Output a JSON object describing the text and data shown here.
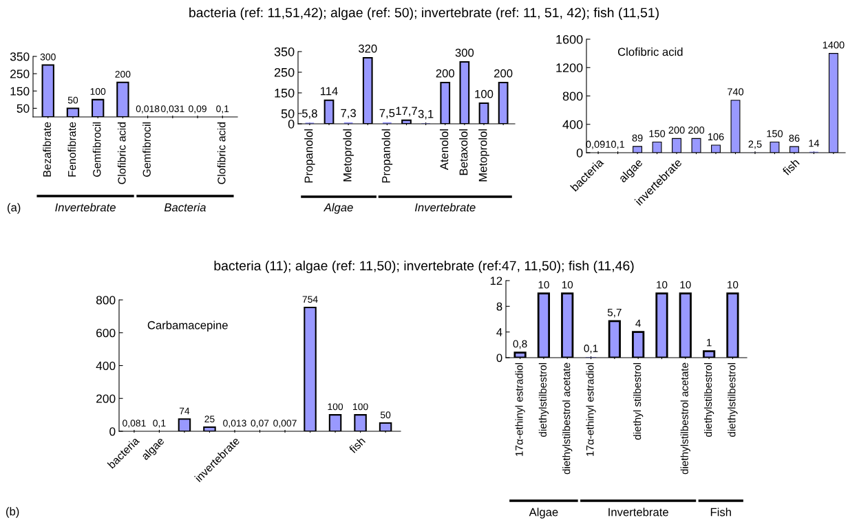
{
  "chart_data": [
    {
      "type": "bar",
      "categories": [
        "Bezafibrate",
        "Fenofibrate",
        "Gemfibrocil",
        "Clofibric acid",
        "Gemfibrocil",
        null,
        null,
        "Clofibric acid"
      ],
      "values": [
        300,
        50,
        100,
        200,
        0.018,
        0.031,
        0.09,
        0.1
      ],
      "color": "#9999ff",
      "value_labels": [
        "300",
        "50",
        "100",
        "200",
        "0,018",
        "0,031",
        "0,09",
        "0,1"
      ],
      "ylim": [
        0,
        350
      ],
      "yticks": [
        50,
        150,
        250,
        350
      ],
      "annotations": [
        "Invertebrate",
        "Bacteria",
        "(a)"
      ]
    },
    {
      "type": "bar",
      "title": "bacteria (ref: 11,51,42); algae (ref: 50); invertebrate (ref: 11, 51, 42); fish (11,51)",
      "categories": [
        "Propanolol",
        null,
        "Metoprolol",
        null,
        "Propanolol",
        null,
        null,
        "Atenolol",
        "Betaxolol",
        "Metoprolol",
        null
      ],
      "values": [
        5.8,
        114,
        7.3,
        320,
        7.5,
        17.7,
        3.1,
        200,
        300,
        100,
        200
      ],
      "color": "#9999ff",
      "value_labels": [
        "5,8",
        "114",
        "7,3",
        "320",
        "7,5",
        "17,7",
        "3,1",
        "200",
        "300",
        "100",
        "200"
      ],
      "ylim": [
        0,
        350
      ],
      "yticks": [
        0,
        50,
        150,
        250,
        350
      ],
      "annotations": [
        "Algae",
        "Invertebrate"
      ]
    },
    {
      "type": "bar",
      "categories": [
        "bacteria",
        null,
        "algae",
        null,
        "invertebrate",
        null,
        null,
        null,
        null,
        null,
        "fish",
        null,
        null
      ],
      "values": [
        0.091,
        0.1,
        89,
        150,
        200,
        200,
        106,
        740,
        2.5,
        150,
        86,
        14,
        1400
      ],
      "color": "#9999ff",
      "value_labels": [
        "0,091",
        "0,1",
        "89",
        "150",
        "200",
        "200",
        "106",
        "740",
        "2,5",
        "150",
        "86",
        "14",
        "1400"
      ],
      "ylim": [
        0,
        1600
      ],
      "yticks": [
        0,
        400,
        800,
        1200,
        1600
      ],
      "annotations": [
        "Clofibric acid"
      ]
    },
    {
      "type": "bar",
      "title": "bacteria (11); algae (ref: 11,50); invertebrate (ref:47, 11,50); fish (11,46)",
      "categories": [
        "bacteria",
        "algae",
        null,
        null,
        "invertebrate",
        null,
        null,
        null,
        null,
        "fish",
        null
      ],
      "values": [
        0.081,
        0.1,
        74,
        25,
        0.013,
        0.07,
        0.007,
        754,
        100,
        100,
        50
      ],
      "color": "#9999ff",
      "value_labels": [
        "0,081",
        "0,1",
        "74",
        "25",
        "0,013",
        "0,07",
        "0,007",
        "754",
        "100",
        "100",
        "50"
      ],
      "ylim": [
        0,
        800
      ],
      "yticks": [
        0,
        200,
        400,
        600,
        800
      ],
      "annotations": [
        "Carbamacepine",
        "(b)"
      ]
    },
    {
      "type": "bar",
      "categories": [
        "17α-ethinyl estradiol",
        "diethylstilbestrol",
        "diethylstilbestrol acetate",
        "17α-ethinyl estradiol",
        null,
        "diethyl stilbestrol",
        null,
        "diethylstilbestrol acetate",
        "diethylstilbestrol",
        "diethylstilbestrol"
      ],
      "values": [
        0.8,
        10,
        10,
        0.1,
        5.7,
        4,
        10,
        10,
        1,
        10
      ],
      "color": "#9999ff",
      "value_labels": [
        "0,8",
        "10",
        "10",
        "0,1",
        "5,7",
        "4",
        "10",
        "10",
        "1",
        "10"
      ],
      "ylim": [
        0,
        12
      ],
      "yticks": [
        0,
        4,
        8,
        12
      ],
      "annotations": [
        "Algae",
        "Invertebrate",
        "Fish"
      ]
    }
  ]
}
